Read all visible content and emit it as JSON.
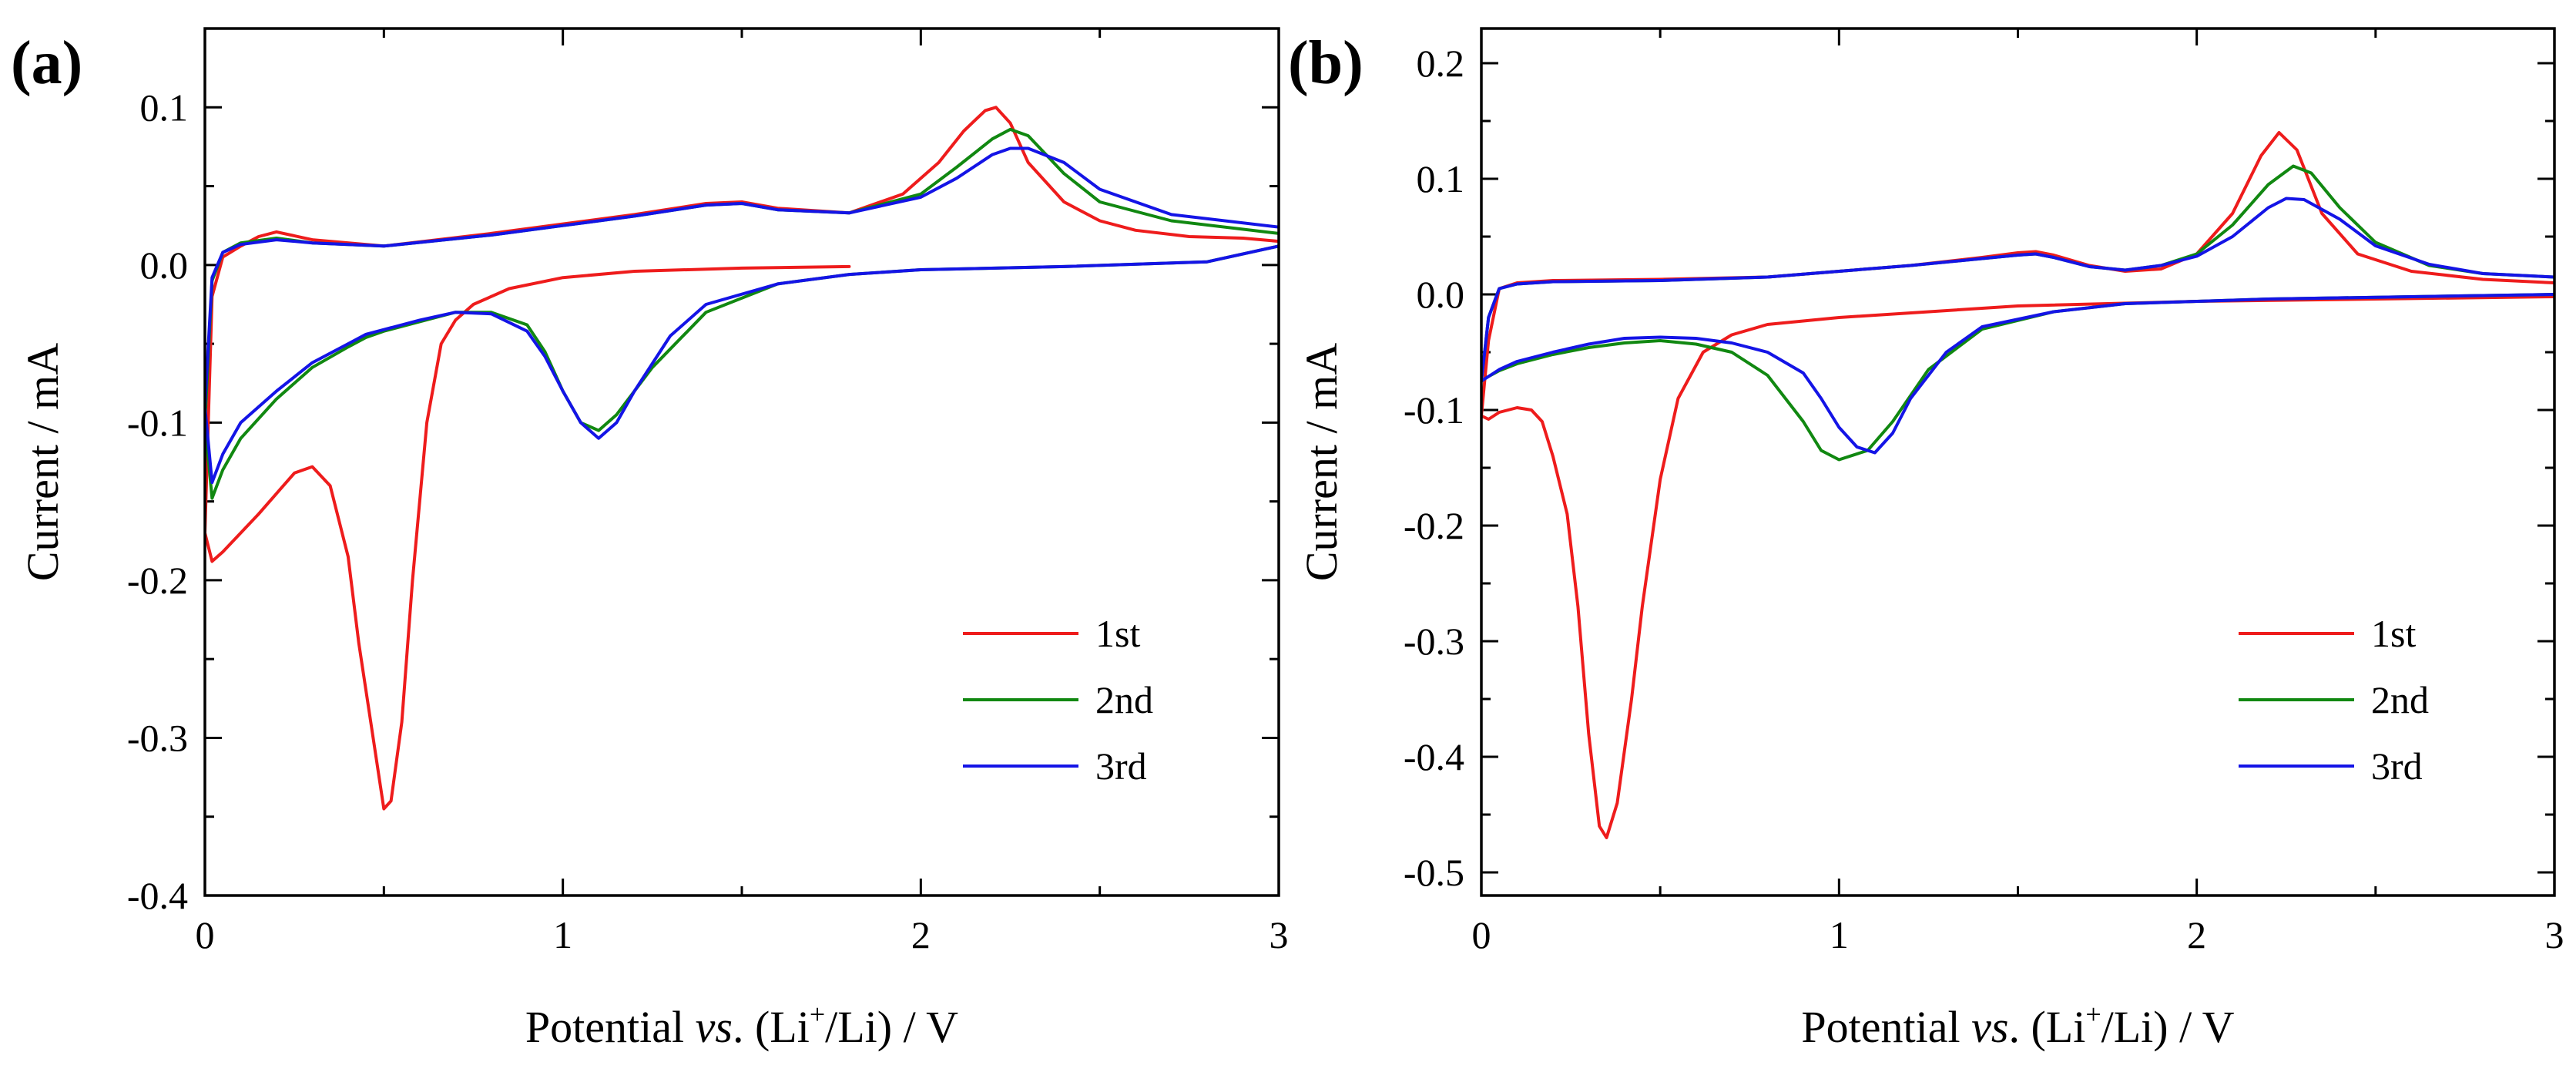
{
  "chart_data": [
    {
      "type": "line",
      "panel_label": "(a)",
      "xlabel_parts": [
        "Potential ",
        "vs",
        ". (Li",
        "+",
        "/Li) / V"
      ],
      "ylabel": "Current / mA",
      "xlim": [
        0,
        3
      ],
      "ylim": [
        -0.4,
        0.15
      ],
      "x_ticks": [
        0,
        1,
        2,
        3
      ],
      "x_tick_labels": [
        "0",
        "1",
        "2",
        "3"
      ],
      "y_ticks": [
        -0.4,
        -0.3,
        -0.2,
        -0.1,
        0.0,
        0.1
      ],
      "y_tick_labels": [
        "-0.4",
        "-0.3",
        "-0.2",
        "-0.1",
        "0.0",
        "0.1"
      ],
      "legend_position": "bottom-right",
      "series": [
        {
          "name": "1st",
          "color": "#ee1c1c",
          "x": [
            1.8,
            1.5,
            1.2,
            1.0,
            0.85,
            0.75,
            0.7,
            0.66,
            0.62,
            0.58,
            0.55,
            0.52,
            0.5,
            0.47,
            0.43,
            0.4,
            0.35,
            0.3,
            0.25,
            0.2,
            0.15,
            0.1,
            0.05,
            0.02,
            0.0,
            0.02,
            0.05,
            0.1,
            0.15,
            0.2,
            0.3,
            0.5,
            0.8,
            1.0,
            1.2,
            1.4,
            1.5,
            1.6,
            1.8,
            1.95,
            2.05,
            2.12,
            2.18,
            2.21,
            2.25,
            2.3,
            2.4,
            2.5,
            2.6,
            2.75,
            2.9,
            3.0
          ],
          "y": [
            -0.001,
            -0.002,
            -0.004,
            -0.008,
            -0.015,
            -0.025,
            -0.035,
            -0.05,
            -0.1,
            -0.2,
            -0.29,
            -0.34,
            -0.345,
            -0.3,
            -0.24,
            -0.185,
            -0.14,
            -0.128,
            -0.132,
            -0.145,
            -0.158,
            -0.17,
            -0.182,
            -0.188,
            -0.17,
            -0.02,
            0.005,
            0.012,
            0.018,
            0.021,
            0.016,
            0.012,
            0.02,
            0.026,
            0.032,
            0.039,
            0.04,
            0.036,
            0.033,
            0.045,
            0.065,
            0.085,
            0.098,
            0.1,
            0.09,
            0.065,
            0.04,
            0.028,
            0.022,
            0.018,
            0.017,
            0.015
          ]
        },
        {
          "name": "2nd",
          "color": "#118811",
          "x": [
            3.0,
            2.8,
            2.4,
            2.0,
            1.8,
            1.6,
            1.4,
            1.25,
            1.15,
            1.1,
            1.05,
            1.0,
            0.95,
            0.9,
            0.8,
            0.7,
            0.6,
            0.5,
            0.45,
            0.4,
            0.3,
            0.2,
            0.1,
            0.05,
            0.02,
            0.0,
            0.02,
            0.05,
            0.1,
            0.2,
            0.3,
            0.5,
            0.8,
            1.0,
            1.2,
            1.4,
            1.5,
            1.6,
            1.8,
            2.0,
            2.1,
            2.2,
            2.25,
            2.3,
            2.4,
            2.5,
            2.7,
            3.0
          ],
          "y": [
            0.012,
            0.002,
            -0.001,
            -0.003,
            -0.006,
            -0.012,
            -0.03,
            -0.065,
            -0.095,
            -0.105,
            -0.1,
            -0.08,
            -0.055,
            -0.038,
            -0.03,
            -0.03,
            -0.036,
            -0.042,
            -0.046,
            -0.052,
            -0.065,
            -0.085,
            -0.11,
            -0.13,
            -0.148,
            -0.1,
            -0.01,
            0.008,
            0.014,
            0.017,
            0.014,
            0.012,
            0.019,
            0.025,
            0.031,
            0.038,
            0.039,
            0.035,
            0.033,
            0.045,
            0.062,
            0.08,
            0.086,
            0.082,
            0.058,
            0.04,
            0.028,
            0.02
          ]
        },
        {
          "name": "3rd",
          "color": "#1414e6",
          "x": [
            3.0,
            2.8,
            2.4,
            2.0,
            1.8,
            1.6,
            1.4,
            1.3,
            1.2,
            1.15,
            1.1,
            1.05,
            1.0,
            0.95,
            0.9,
            0.8,
            0.7,
            0.6,
            0.5,
            0.45,
            0.4,
            0.3,
            0.2,
            0.1,
            0.05,
            0.02,
            0.0,
            0.02,
            0.05,
            0.1,
            0.2,
            0.3,
            0.5,
            0.8,
            1.0,
            1.2,
            1.4,
            1.5,
            1.6,
            1.8,
            2.0,
            2.1,
            2.2,
            2.25,
            2.3,
            2.4,
            2.5,
            2.7,
            3.0
          ],
          "y": [
            0.012,
            0.002,
            -0.001,
            -0.003,
            -0.006,
            -0.012,
            -0.025,
            -0.045,
            -0.08,
            -0.1,
            -0.11,
            -0.1,
            -0.08,
            -0.058,
            -0.042,
            -0.031,
            -0.03,
            -0.035,
            -0.041,
            -0.044,
            -0.05,
            -0.062,
            -0.08,
            -0.1,
            -0.12,
            -0.138,
            -0.09,
            -0.008,
            0.008,
            0.013,
            0.016,
            0.014,
            0.012,
            0.019,
            0.025,
            0.031,
            0.038,
            0.039,
            0.035,
            0.033,
            0.043,
            0.055,
            0.07,
            0.074,
            0.074,
            0.065,
            0.048,
            0.032,
            0.024
          ]
        }
      ]
    },
    {
      "type": "line",
      "panel_label": "(b)",
      "xlabel_parts": [
        "Potential ",
        "vs",
        ". (Li",
        "+",
        "/Li) / V"
      ],
      "ylabel": "Current / mA",
      "xlim": [
        0,
        3
      ],
      "ylim": [
        -0.52,
        0.23
      ],
      "x_ticks": [
        0,
        1,
        2,
        3
      ],
      "x_tick_labels": [
        "0",
        "1",
        "2",
        "3"
      ],
      "y_ticks": [
        -0.5,
        -0.4,
        -0.3,
        -0.2,
        -0.1,
        0.0,
        0.1,
        0.2
      ],
      "y_tick_labels": [
        "-0.5",
        "-0.4",
        "-0.3",
        "-0.2",
        "-0.1",
        "0.0",
        "0.1",
        "0.2"
      ],
      "legend_position": "bottom-right",
      "series": [
        {
          "name": "1st",
          "color": "#ee1c1c",
          "x": [
            3.0,
            2.5,
            2.0,
            1.5,
            1.0,
            0.8,
            0.7,
            0.62,
            0.55,
            0.5,
            0.45,
            0.42,
            0.38,
            0.35,
            0.33,
            0.3,
            0.27,
            0.24,
            0.2,
            0.17,
            0.14,
            0.1,
            0.05,
            0.02,
            0.0,
            0.02,
            0.05,
            0.1,
            0.2,
            0.5,
            0.8,
            1.0,
            1.2,
            1.4,
            1.5,
            1.55,
            1.6,
            1.7,
            1.8,
            1.9,
            2.0,
            2.1,
            2.18,
            2.23,
            2.28,
            2.35,
            2.45,
            2.6,
            2.8,
            3.0
          ],
          "y": [
            -0.002,
            -0.004,
            -0.006,
            -0.01,
            -0.02,
            -0.026,
            -0.035,
            -0.05,
            -0.09,
            -0.16,
            -0.27,
            -0.35,
            -0.44,
            -0.47,
            -0.46,
            -0.38,
            -0.27,
            -0.19,
            -0.14,
            -0.11,
            -0.1,
            -0.098,
            -0.102,
            -0.108,
            -0.105,
            -0.04,
            0.005,
            0.01,
            0.012,
            0.013,
            0.015,
            0.02,
            0.025,
            0.032,
            0.036,
            0.037,
            0.034,
            0.025,
            0.02,
            0.022,
            0.035,
            0.07,
            0.12,
            0.14,
            0.125,
            0.07,
            0.035,
            0.02,
            0.013,
            0.01
          ]
        },
        {
          "name": "2nd",
          "color": "#118811",
          "x": [
            3.0,
            2.6,
            2.2,
            1.8,
            1.6,
            1.4,
            1.25,
            1.15,
            1.08,
            1.0,
            0.95,
            0.9,
            0.8,
            0.7,
            0.6,
            0.5,
            0.4,
            0.3,
            0.2,
            0.1,
            0.05,
            0.02,
            0.0,
            0.02,
            0.05,
            0.1,
            0.2,
            0.5,
            0.8,
            1.0,
            1.2,
            1.4,
            1.5,
            1.55,
            1.6,
            1.7,
            1.8,
            1.9,
            2.0,
            2.1,
            2.2,
            2.27,
            2.32,
            2.4,
            2.5,
            2.65,
            2.8,
            3.0
          ],
          "y": [
            0.0,
            -0.002,
            -0.004,
            -0.008,
            -0.015,
            -0.03,
            -0.065,
            -0.11,
            -0.135,
            -0.143,
            -0.135,
            -0.11,
            -0.07,
            -0.05,
            -0.043,
            -0.04,
            -0.042,
            -0.046,
            -0.052,
            -0.06,
            -0.066,
            -0.071,
            -0.075,
            -0.02,
            0.005,
            0.009,
            0.011,
            0.012,
            0.015,
            0.02,
            0.025,
            0.031,
            0.034,
            0.035,
            0.032,
            0.024,
            0.021,
            0.025,
            0.035,
            0.06,
            0.095,
            0.111,
            0.105,
            0.075,
            0.045,
            0.025,
            0.018,
            0.015
          ]
        },
        {
          "name": "3rd",
          "color": "#1414e6",
          "x": [
            3.0,
            2.6,
            2.2,
            1.8,
            1.6,
            1.4,
            1.3,
            1.2,
            1.15,
            1.1,
            1.05,
            1.0,
            0.95,
            0.9,
            0.8,
            0.7,
            0.6,
            0.5,
            0.4,
            0.3,
            0.2,
            0.1,
            0.05,
            0.02,
            0.0,
            0.02,
            0.05,
            0.1,
            0.2,
            0.5,
            0.8,
            1.0,
            1.2,
            1.4,
            1.5,
            1.55,
            1.6,
            1.7,
            1.8,
            1.9,
            2.0,
            2.1,
            2.2,
            2.25,
            2.3,
            2.4,
            2.5,
            2.65,
            2.8,
            3.0
          ],
          "y": [
            0.0,
            -0.002,
            -0.004,
            -0.008,
            -0.015,
            -0.028,
            -0.05,
            -0.09,
            -0.12,
            -0.137,
            -0.132,
            -0.115,
            -0.09,
            -0.068,
            -0.05,
            -0.042,
            -0.038,
            -0.037,
            -0.038,
            -0.043,
            -0.05,
            -0.058,
            -0.065,
            -0.071,
            -0.075,
            -0.02,
            0.005,
            0.009,
            0.011,
            0.012,
            0.015,
            0.02,
            0.025,
            0.031,
            0.034,
            0.035,
            0.032,
            0.024,
            0.021,
            0.025,
            0.033,
            0.05,
            0.075,
            0.083,
            0.082,
            0.065,
            0.042,
            0.026,
            0.018,
            0.015
          ]
        }
      ]
    }
  ]
}
